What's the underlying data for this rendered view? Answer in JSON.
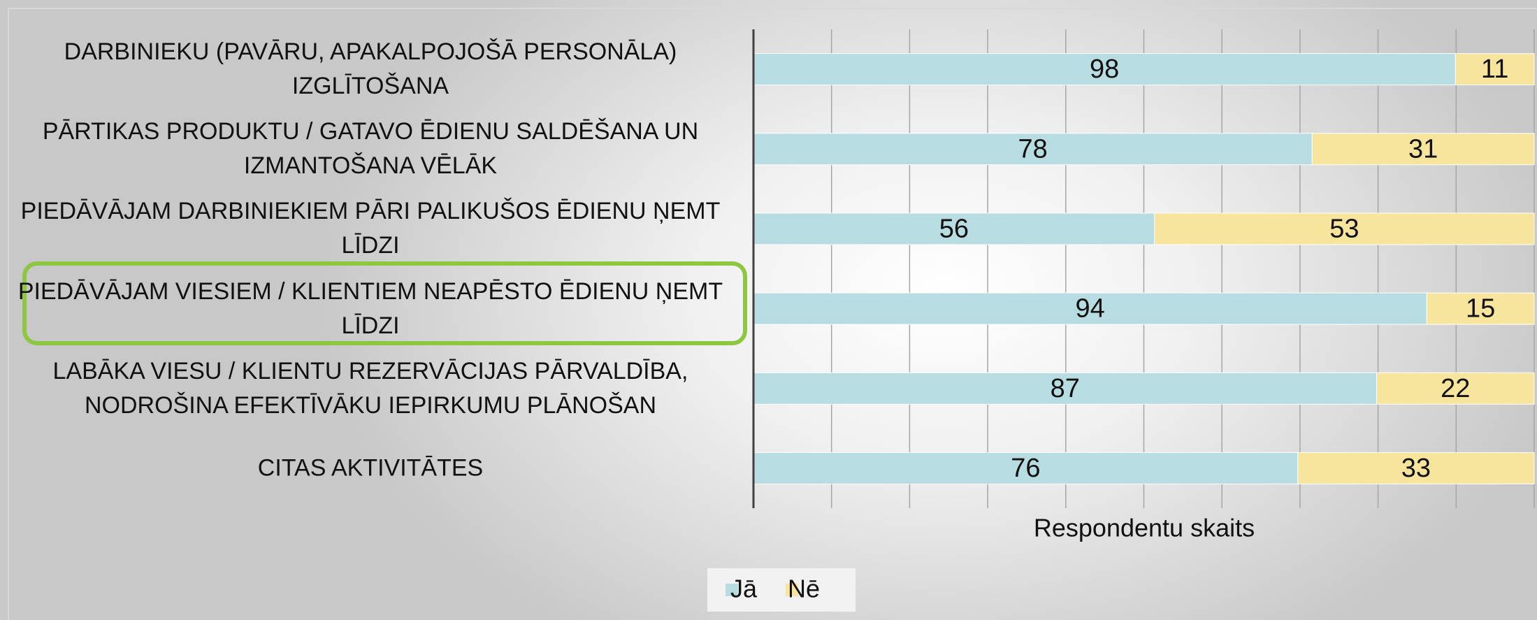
{
  "chart_data": {
    "type": "stacked_bar_horizontal",
    "categories": [
      "DARBINIEKU (PAVĀRU, APAKALPOJOŠĀ PERSONĀLA) IZGLĪTOŠANA",
      "PĀRTIKAS PRODUKTU / GATAVO ĒDIENU SALDĒŠANA UN IZMANTOŠANA VĒLĀK",
      "PIEDĀVĀJAM DARBINIEKIEM PĀRI PALIKUŠOS ĒDIENU ŅEMT LĪDZI",
      "PIEDĀVĀJAM VIESIEM / KLIENTIEM NEAPĒSTO ĒDIENU ŅEMT LĪDZI",
      "LABĀKA VIESU / KLIENTU REZERVĀCIJAS PĀRVALDĪBA, NODROŠINA EFEKTĪVĀKU IEPIRKUMU PLĀNOŠAN",
      "CITAS AKTIVITĀTES"
    ],
    "series": [
      {
        "name": "Jā",
        "color": "#b7dce1",
        "values": [
          98,
          78,
          56,
          94,
          87,
          76
        ]
      },
      {
        "name": "Nē",
        "color": "#f8e59d",
        "values": [
          11,
          31,
          53,
          15,
          22,
          33
        ]
      }
    ],
    "xlabel": "Respondentu skaits",
    "xlim": [
      0,
      109
    ],
    "xticks": [
      0,
      10.9,
      21.8,
      32.7,
      43.6,
      54.5,
      65.4,
      76.3,
      87.2,
      98.1,
      109
    ],
    "grid": true,
    "legend": "bottom"
  }
}
